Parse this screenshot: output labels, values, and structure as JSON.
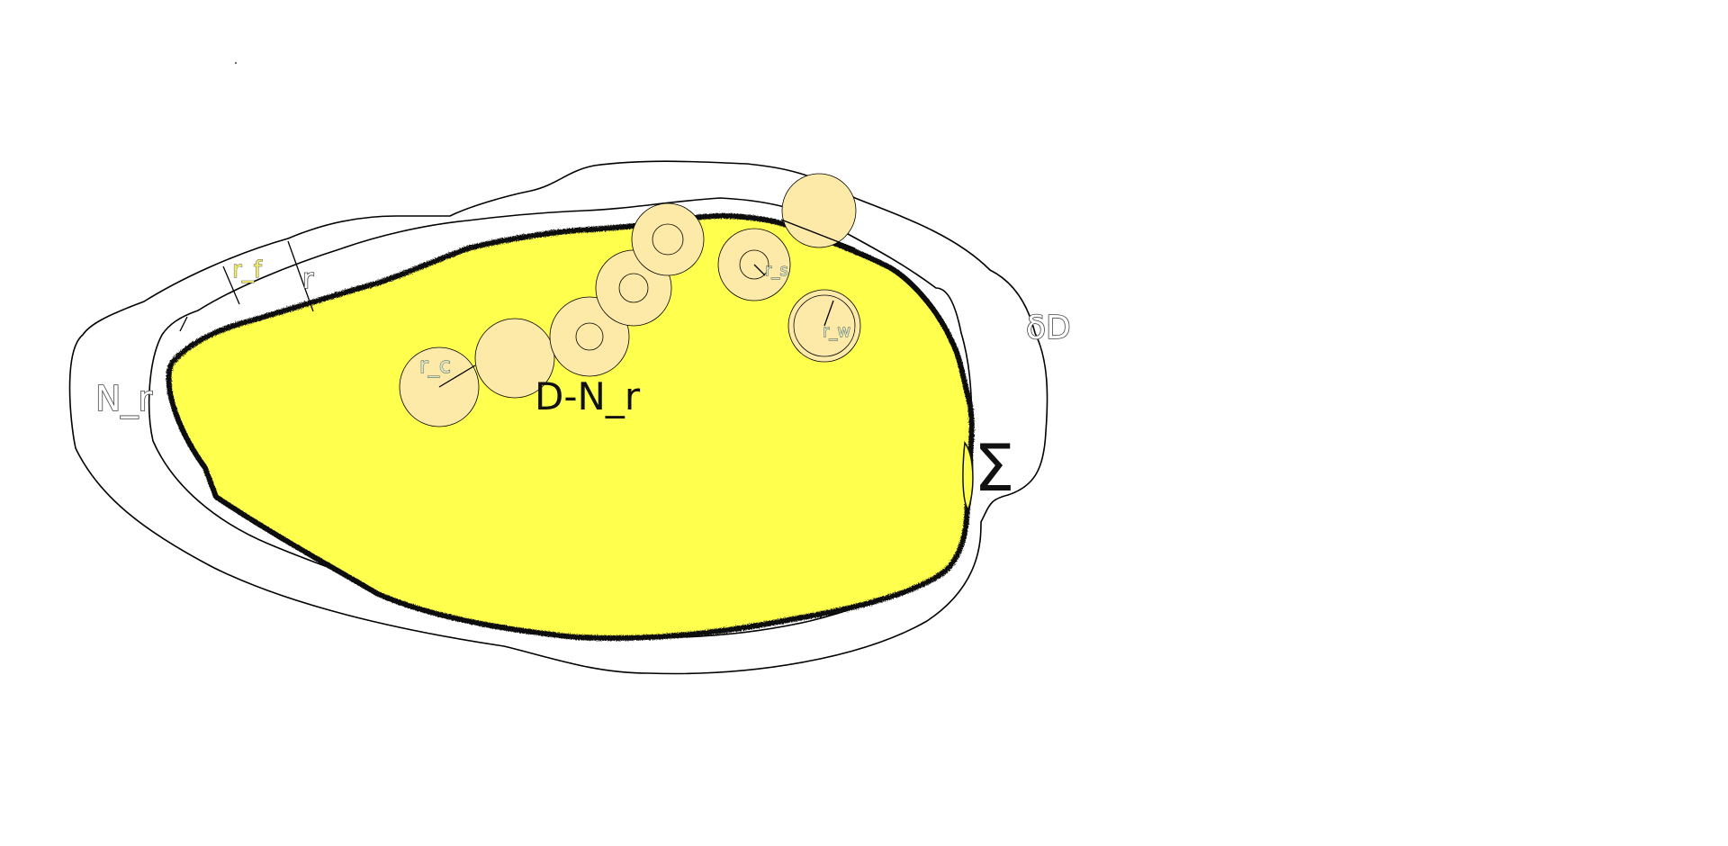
{
  "labels": {
    "domain_label": "D-N_r",
    "neighborhood_label": "N_r",
    "boundary_label": "δD",
    "singular_label": "Σ",
    "radius_label": "r",
    "radius_f_label": "r_f",
    "radius_c_label": "r_c",
    "radius_s_label": "r_s",
    "radius_w_label": "r_w"
  },
  "colors": {
    "domain_fill": "#ffff4d",
    "ball_fill": "#fdeaa8",
    "edge": "#000000"
  },
  "icons": {
    "balls": "circle-icon"
  }
}
